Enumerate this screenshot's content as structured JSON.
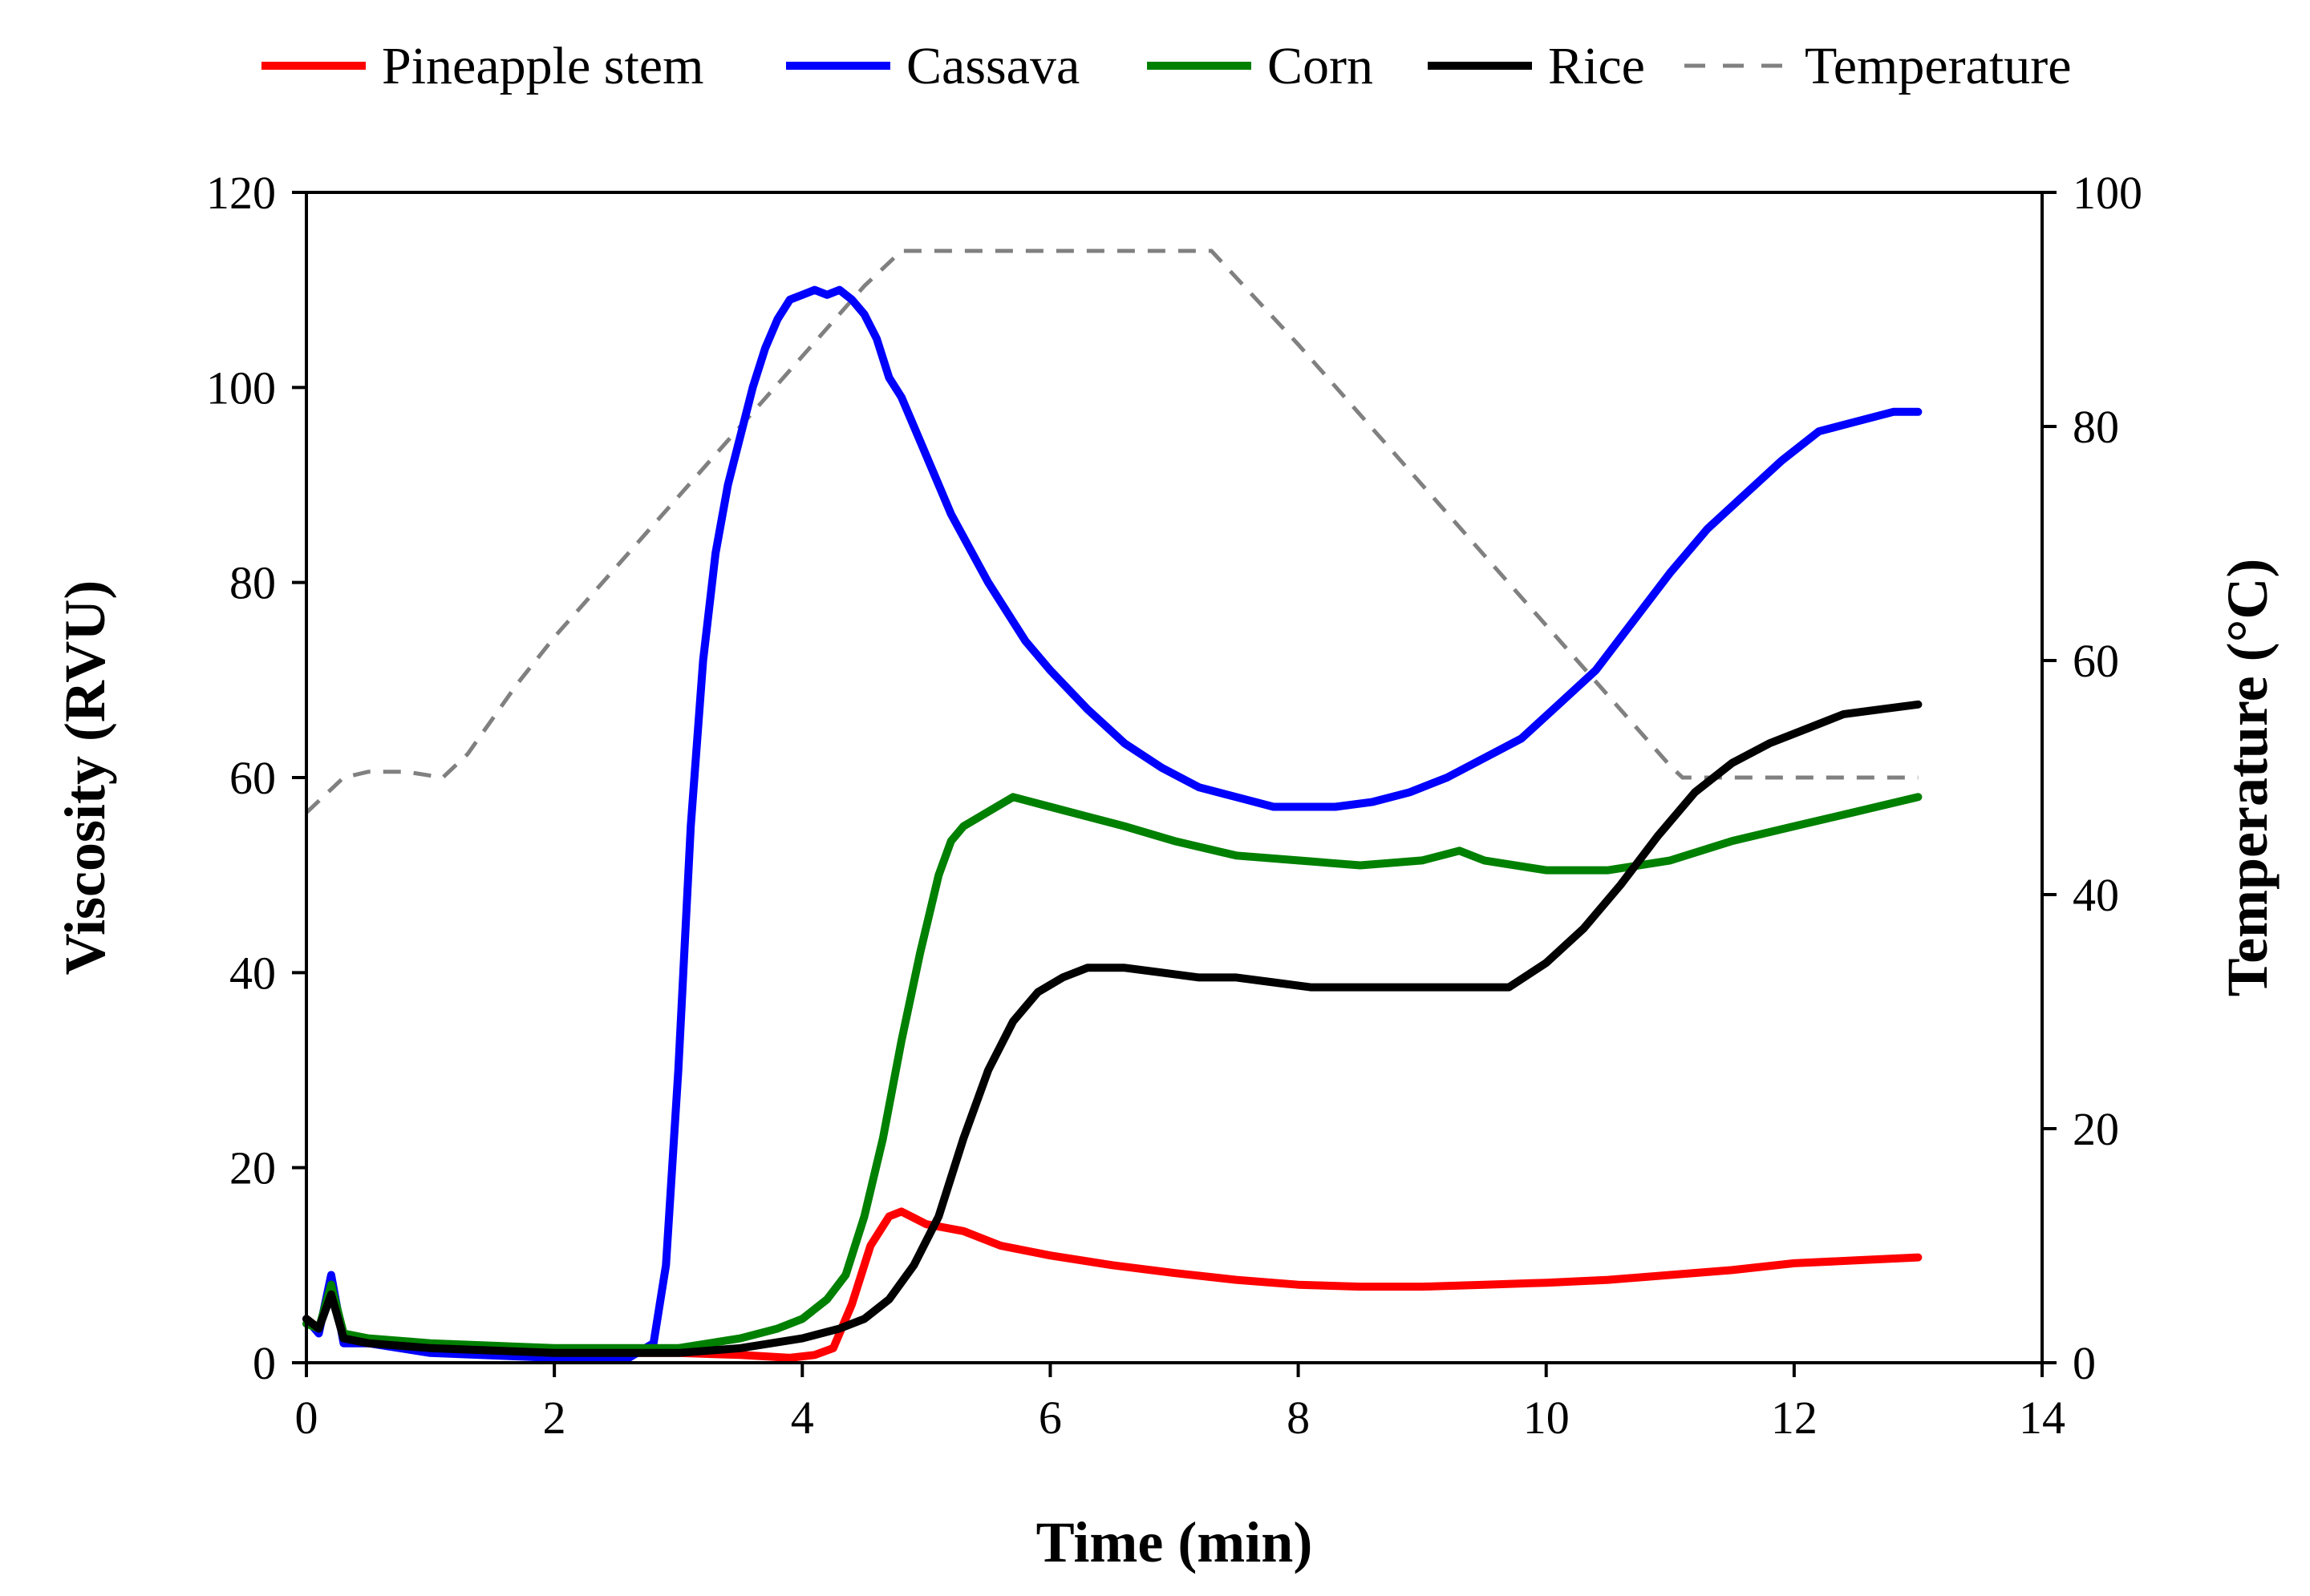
{
  "chart_data": {
    "type": "line",
    "title": "",
    "xlabel": "Time (min)",
    "ylabel": "Viscosity (RVU)",
    "y2label": "Temperature (°C)",
    "xlim": [
      0,
      14
    ],
    "ylim": [
      0,
      120
    ],
    "y2lim": [
      0,
      100
    ],
    "xticks": [
      "0",
      "2",
      "4",
      "6",
      "8",
      "10",
      "12",
      "14"
    ],
    "yticks": [
      "0",
      "20",
      "40",
      "60",
      "80",
      "100",
      "120"
    ],
    "y2ticks": [
      "0",
      "20",
      "40",
      "60",
      "80",
      "100"
    ],
    "legend_position": "top",
    "grid": false,
    "series": [
      {
        "name": "Pineapple stem",
        "color": "#ff0000",
        "axis": "left",
        "style": "solid",
        "points": [
          [
            0,
            4.5
          ],
          [
            0.1,
            3.5
          ],
          [
            0.2,
            7.5
          ],
          [
            0.3,
            2.5
          ],
          [
            0.5,
            2
          ],
          [
            1,
            1.5
          ],
          [
            2,
            1
          ],
          [
            3,
            1
          ],
          [
            3.5,
            0.8
          ],
          [
            3.9,
            0.5
          ],
          [
            4.1,
            0.8
          ],
          [
            4.25,
            1.5
          ],
          [
            4.4,
            6
          ],
          [
            4.55,
            12
          ],
          [
            4.7,
            15
          ],
          [
            4.8,
            15.5
          ],
          [
            5.0,
            14.2
          ],
          [
            5.3,
            13.5
          ],
          [
            5.6,
            12
          ],
          [
            6,
            11
          ],
          [
            6.5,
            10
          ],
          [
            7,
            9.2
          ],
          [
            7.5,
            8.5
          ],
          [
            8,
            8
          ],
          [
            8.5,
            7.8
          ],
          [
            9,
            7.8
          ],
          [
            9.5,
            8
          ],
          [
            10,
            8.2
          ],
          [
            10.5,
            8.5
          ],
          [
            11,
            9
          ],
          [
            11.5,
            9.5
          ],
          [
            12,
            10.2
          ],
          [
            12.5,
            10.5
          ],
          [
            13,
            10.8
          ]
        ]
      },
      {
        "name": "Cassava",
        "color": "#0000ff",
        "axis": "left",
        "style": "solid",
        "points": [
          [
            0,
            4.5
          ],
          [
            0.1,
            3
          ],
          [
            0.2,
            9
          ],
          [
            0.3,
            2
          ],
          [
            0.5,
            2
          ],
          [
            1,
            1
          ],
          [
            2,
            0.5
          ],
          [
            2.6,
            0.5
          ],
          [
            2.8,
            2
          ],
          [
            2.9,
            10
          ],
          [
            3.0,
            30
          ],
          [
            3.1,
            55
          ],
          [
            3.2,
            72
          ],
          [
            3.3,
            83
          ],
          [
            3.4,
            90
          ],
          [
            3.5,
            95
          ],
          [
            3.6,
            100
          ],
          [
            3.7,
            104
          ],
          [
            3.8,
            107
          ],
          [
            3.9,
            109
          ],
          [
            4.0,
            109.5
          ],
          [
            4.1,
            110
          ],
          [
            4.2,
            109.5
          ],
          [
            4.3,
            110
          ],
          [
            4.4,
            109
          ],
          [
            4.5,
            107.5
          ],
          [
            4.6,
            105
          ],
          [
            4.7,
            101
          ],
          [
            4.8,
            99
          ],
          [
            5.0,
            93
          ],
          [
            5.2,
            87
          ],
          [
            5.5,
            80
          ],
          [
            5.8,
            74
          ],
          [
            6.0,
            71
          ],
          [
            6.3,
            67
          ],
          [
            6.6,
            63.5
          ],
          [
            6.9,
            61
          ],
          [
            7.2,
            59
          ],
          [
            7.5,
            58
          ],
          [
            7.8,
            57
          ],
          [
            8.0,
            57
          ],
          [
            8.3,
            57
          ],
          [
            8.6,
            57.5
          ],
          [
            8.9,
            58.5
          ],
          [
            9.2,
            60
          ],
          [
            9.5,
            62
          ],
          [
            9.8,
            64
          ],
          [
            10.1,
            67.5
          ],
          [
            10.4,
            71
          ],
          [
            10.7,
            76
          ],
          [
            11.0,
            81
          ],
          [
            11.3,
            85.5
          ],
          [
            11.6,
            89
          ],
          [
            11.9,
            92.5
          ],
          [
            12.2,
            95.5
          ],
          [
            12.5,
            96.5
          ],
          [
            12.8,
            97.5
          ],
          [
            13.0,
            97.5
          ]
        ]
      },
      {
        "name": "Corn",
        "color": "#008000",
        "axis": "left",
        "style": "solid",
        "points": [
          [
            0,
            4
          ],
          [
            0.1,
            3.5
          ],
          [
            0.2,
            8
          ],
          [
            0.3,
            3
          ],
          [
            0.5,
            2.5
          ],
          [
            1,
            2
          ],
          [
            2,
            1.5
          ],
          [
            3,
            1.5
          ],
          [
            3.5,
            2.5
          ],
          [
            3.8,
            3.5
          ],
          [
            4.0,
            4.5
          ],
          [
            4.2,
            6.5
          ],
          [
            4.35,
            9
          ],
          [
            4.5,
            15
          ],
          [
            4.65,
            23
          ],
          [
            4.8,
            33
          ],
          [
            4.95,
            42
          ],
          [
            5.1,
            50
          ],
          [
            5.2,
            53.5
          ],
          [
            5.3,
            55
          ],
          [
            5.5,
            56.5
          ],
          [
            5.7,
            58
          ],
          [
            6.0,
            57
          ],
          [
            6.3,
            56
          ],
          [
            6.6,
            55
          ],
          [
            7.0,
            53.5
          ],
          [
            7.5,
            52
          ],
          [
            8.0,
            51.5
          ],
          [
            8.5,
            51
          ],
          [
            9.0,
            51.5
          ],
          [
            9.3,
            52.5
          ],
          [
            9.5,
            51.5
          ],
          [
            10.0,
            50.5
          ],
          [
            10.5,
            50.5
          ],
          [
            11.0,
            51.5
          ],
          [
            11.5,
            53.5
          ],
          [
            12.0,
            55
          ],
          [
            12.5,
            56.5
          ],
          [
            13.0,
            58
          ]
        ]
      },
      {
        "name": "Rice",
        "color": "#000000",
        "axis": "left",
        "style": "solid",
        "points": [
          [
            0,
            4.5
          ],
          [
            0.1,
            3.5
          ],
          [
            0.2,
            7
          ],
          [
            0.3,
            2.5
          ],
          [
            0.5,
            2
          ],
          [
            1,
            1.5
          ],
          [
            2,
            1
          ],
          [
            3,
            1
          ],
          [
            3.5,
            1.5
          ],
          [
            4.0,
            2.5
          ],
          [
            4.3,
            3.5
          ],
          [
            4.5,
            4.5
          ],
          [
            4.7,
            6.5
          ],
          [
            4.9,
            10
          ],
          [
            5.1,
            15
          ],
          [
            5.3,
            23
          ],
          [
            5.5,
            30
          ],
          [
            5.7,
            35
          ],
          [
            5.9,
            38
          ],
          [
            6.1,
            39.5
          ],
          [
            6.3,
            40.5
          ],
          [
            6.6,
            40.5
          ],
          [
            6.9,
            40
          ],
          [
            7.2,
            39.5
          ],
          [
            7.5,
            39.5
          ],
          [
            7.8,
            39
          ],
          [
            8.1,
            38.5
          ],
          [
            8.5,
            38.5
          ],
          [
            9.0,
            38.5
          ],
          [
            9.4,
            38.5
          ],
          [
            9.7,
            38.5
          ],
          [
            10.0,
            41
          ],
          [
            10.3,
            44.5
          ],
          [
            10.6,
            49
          ],
          [
            10.9,
            54
          ],
          [
            11.2,
            58.5
          ],
          [
            11.5,
            61.5
          ],
          [
            11.8,
            63.5
          ],
          [
            12.1,
            65
          ],
          [
            12.4,
            66.5
          ],
          [
            12.7,
            67
          ],
          [
            13.0,
            67.5
          ]
        ]
      },
      {
        "name": "Temperature",
        "color": "#808080",
        "axis": "right",
        "style": "dashed",
        "points": [
          [
            0,
            47
          ],
          [
            0.3,
            50
          ],
          [
            0.5,
            50.5
          ],
          [
            0.8,
            50.5
          ],
          [
            1.1,
            50
          ],
          [
            1.3,
            52
          ],
          [
            1.7,
            58
          ],
          [
            2.0,
            62
          ],
          [
            2.5,
            68
          ],
          [
            3.0,
            74
          ],
          [
            3.5,
            80
          ],
          [
            4.0,
            86
          ],
          [
            4.5,
            92
          ],
          [
            4.8,
            95
          ],
          [
            5.2,
            95
          ],
          [
            5.5,
            95
          ],
          [
            7.0,
            95
          ],
          [
            7.3,
            95
          ],
          [
            8.0,
            87
          ],
          [
            9.0,
            75
          ],
          [
            10.0,
            63
          ],
          [
            10.5,
            57
          ],
          [
            11.0,
            51
          ],
          [
            11.1,
            50
          ],
          [
            12.0,
            50
          ],
          [
            13.0,
            50
          ]
        ]
      }
    ]
  }
}
